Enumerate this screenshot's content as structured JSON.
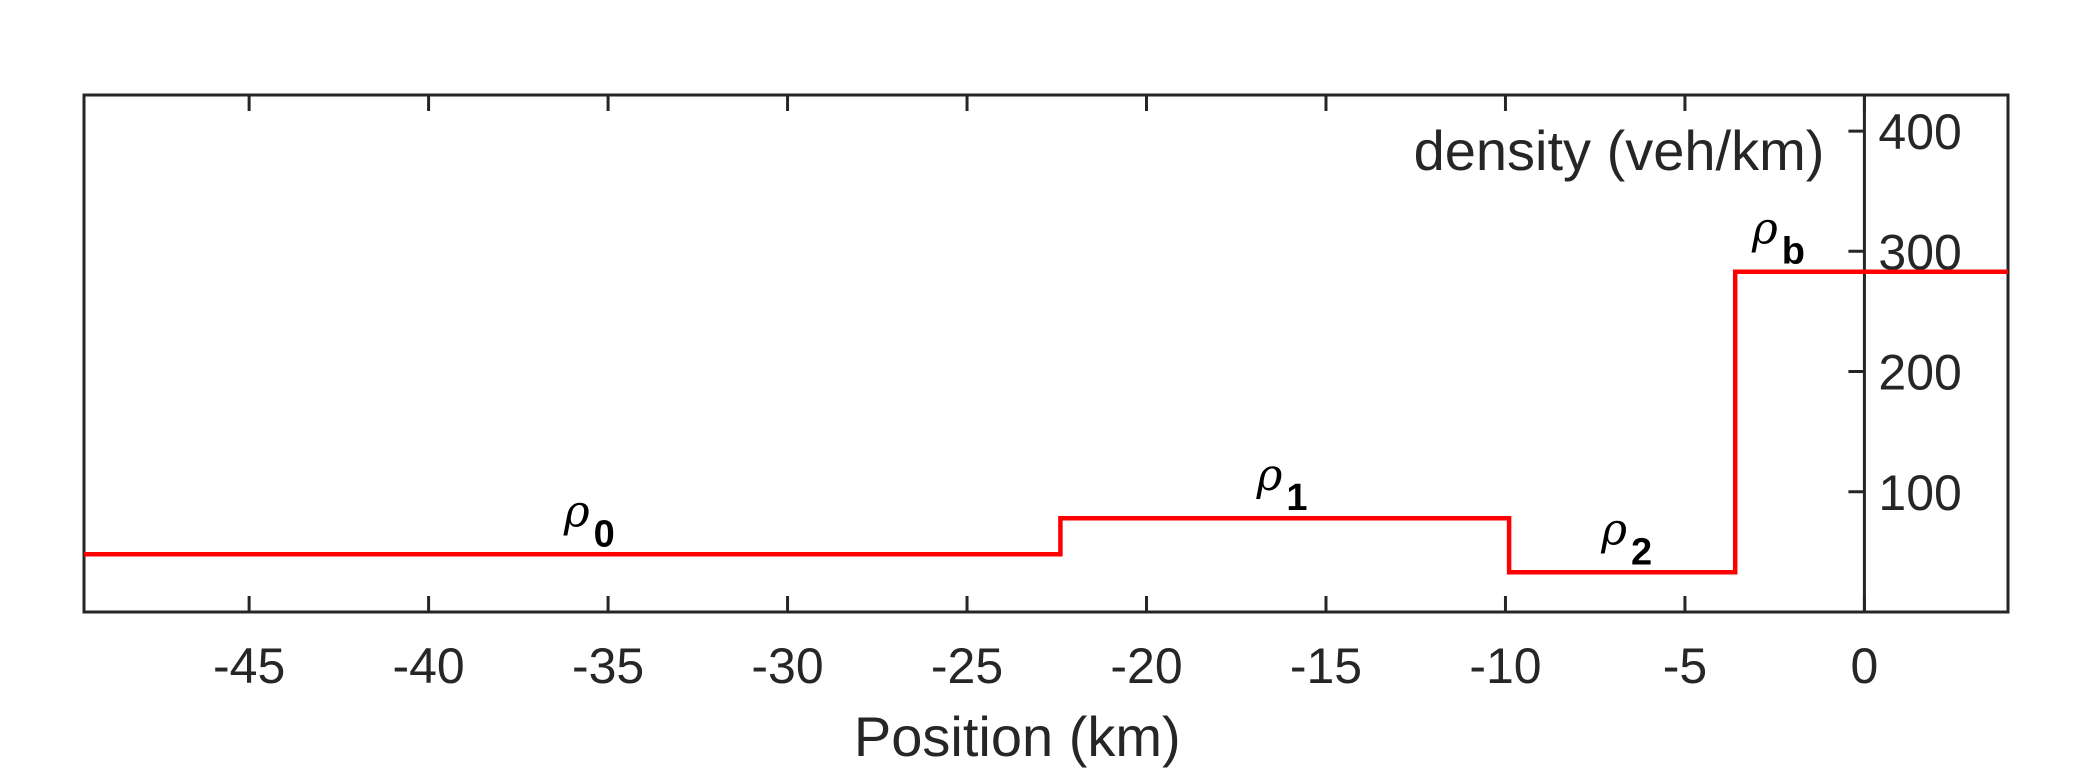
{
  "chart_data": {
    "type": "line",
    "step": true,
    "xlabel": "Position (km)",
    "ylabel": "density (veh/km)",
    "xlim": [
      -49.6,
      4
    ],
    "ylim": [
      0,
      430
    ],
    "xticks": [
      -45,
      -40,
      -35,
      -30,
      -25,
      -20,
      -15,
      -10,
      -5,
      0
    ],
    "yticks": [
      100,
      200,
      300,
      400
    ],
    "grid": false,
    "line_color": "#ff0000",
    "series": [
      {
        "x": [
          -49.6,
          -22.4,
          -22.4,
          -9.9,
          -9.9,
          -3.6,
          -3.6,
          4
        ],
        "y": [
          48,
          48,
          78,
          78,
          33,
          33,
          283,
          283
        ]
      }
    ],
    "annotations": [
      {
        "symbol": "ρ",
        "subscript": "0",
        "x": -35.9,
        "y": 48
      },
      {
        "symbol": "ρ",
        "subscript": "1",
        "x": -16.6,
        "y": 78
      },
      {
        "symbol": "ρ",
        "subscript": "2",
        "x": -7.0,
        "y": 33
      },
      {
        "symbol": "ρ",
        "subscript": "b",
        "x": -2.8,
        "y": 283
      }
    ]
  }
}
